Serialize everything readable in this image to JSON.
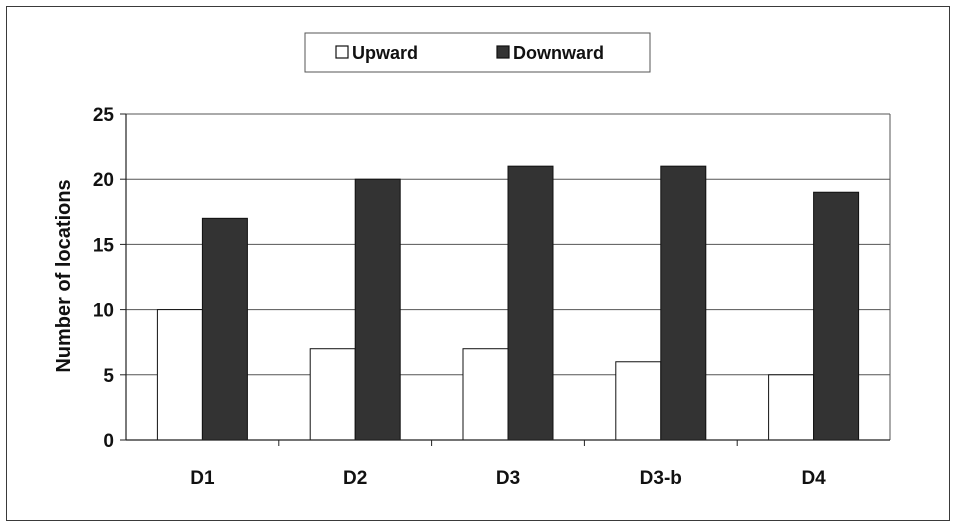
{
  "chart_data": {
    "type": "bar",
    "title": "",
    "xlabel": "",
    "ylabel": "Number of locations",
    "categories": [
      "D1",
      "D2",
      "D3",
      "D3-b",
      "D4"
    ],
    "series": [
      {
        "name": "Upward",
        "values": [
          10,
          7,
          7,
          6,
          5
        ],
        "color": "#ffffff"
      },
      {
        "name": "Downward",
        "values": [
          17,
          20,
          21,
          21,
          19
        ],
        "color": "#333333"
      }
    ],
    "ylim": [
      0,
      25
    ],
    "yticks": [
      0,
      5,
      10,
      15,
      20,
      25
    ],
    "grid": true,
    "legend": "top-center"
  }
}
